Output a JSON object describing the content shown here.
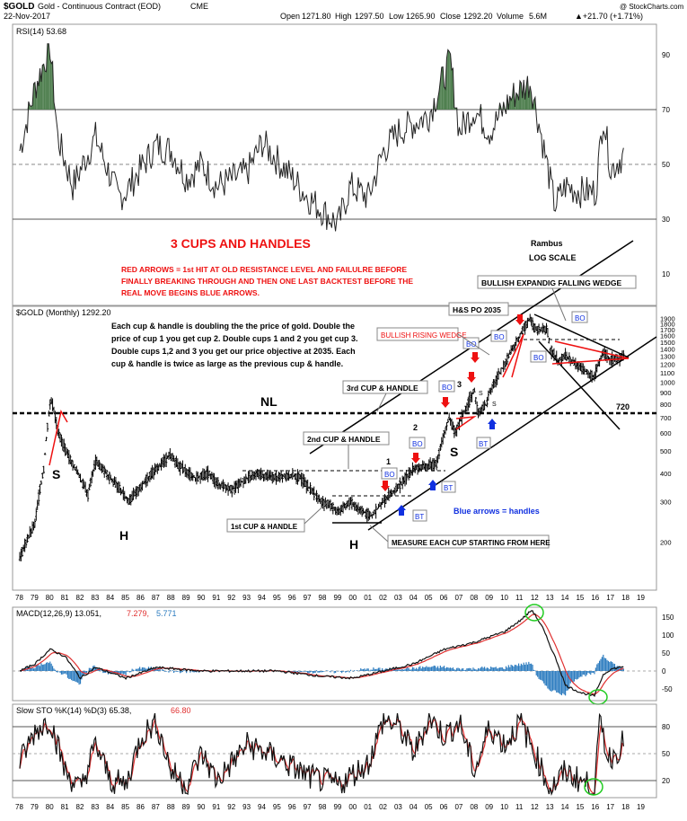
{
  "header": {
    "symbol": "$GOLD",
    "name": "Gold - Continuous Contract (EOD)",
    "exchange": "CME",
    "date": "22-Nov-2017",
    "open_label": "Open",
    "open": "1271.80",
    "high_label": "High",
    "high": "1297.50",
    "low_label": "Low",
    "low": "1265.90",
    "close_label": "Close",
    "close": "1292.20",
    "volume_label": "Volume",
    "volume": "5.6M",
    "change": "▲+21.70 (+1.71%)",
    "copyright": "@ StockCharts.com"
  },
  "colors": {
    "price_bars": "#000000",
    "rsi_fill": "#4f7f4f",
    "macd_signal": "#e03030",
    "histogram": "#2b7bbf",
    "annotation_red": "#ee1111",
    "arrow_blue": "#1030e0",
    "circle_green": "#22cc22"
  },
  "rsi_panel": {
    "label": "RSI(14) 53.68",
    "ticks": [
      "90",
      "70",
      "50",
      "30",
      "10"
    ],
    "title": "3 CUPS AND HANDLES",
    "red_note_lines": [
      "RED ARROWS = 1st HIT AT OLD RESISTANCE LEVEL AND FAILULRE BEFORE",
      "FINALLY BREAKING THROUGH AND THEN ONE LAST BACKTEST BEFORE THE",
      "REAL MOVE BEGINS BLUE ARROWS."
    ],
    "rambus_line1": "Rambus",
    "rambus_line2": "LOG SCALE"
  },
  "price_panel": {
    "label": "$GOLD (Monthly) 1292.20",
    "note_lines": [
      "Each cup & handle is doubling the the price of gold. Double the",
      "price of cup 1 you get cup 2. Double cups 1 and 2 you get cup 3.",
      "Double cups 1,2 and 3 you get our price objective at 2035. Each",
      "cup & handle is twice as large as the previous cup & handle."
    ],
    "y_ticks": [
      "1900",
      "1800",
      "1700",
      "1600",
      "1500",
      "1400",
      "1300",
      "1200",
      "1100",
      "1000",
      "900",
      "800",
      "700",
      "600",
      "500",
      "400",
      "300",
      "200"
    ],
    "callouts": {
      "bullish_expanding": "BULLISH EXPANDIG FALLING WEDGE",
      "hs_po": "H&S PO 2035",
      "bullish_rising": "BULLISH RISING WEDGE",
      "cup3": "3rd CUP & HANDLE",
      "cup2": "2nd CUP & HANDLE",
      "cup1": "1st CUP & HANDLE",
      "measure": "MEASURE EACH CUP STARTING FROM HERE",
      "blue_note": "Blue arrows = handles",
      "nl": "NL",
      "level_720": "720",
      "bo": "BO",
      "bt": "BT",
      "s": "S",
      "h": "H",
      "n1": "1",
      "n2": "2",
      "n3": "3"
    }
  },
  "x_axis_years": [
    "78",
    "79",
    "80",
    "81",
    "82",
    "83",
    "84",
    "85",
    "86",
    "87",
    "88",
    "89",
    "90",
    "91",
    "92",
    "93",
    "94",
    "95",
    "96",
    "97",
    "98",
    "99",
    "00",
    "01",
    "02",
    "03",
    "04",
    "05",
    "06",
    "07",
    "08",
    "09",
    "10",
    "11",
    "12",
    "13",
    "14",
    "15",
    "16",
    "17",
    "18",
    "19"
  ],
  "macd_panel": {
    "label": "MACD(12,26,9) 13.051,",
    "signal_value": "7.279,",
    "hist_value": "5.771",
    "ticks": [
      "150",
      "100",
      "50",
      "0",
      "-50"
    ]
  },
  "sto_panel": {
    "label": "Slow STO %K(14) %D(3) 65.38,",
    "d_value": "66.80",
    "ticks": [
      "80",
      "50",
      "20"
    ]
  },
  "chart_data": {
    "type": "line",
    "title": "3 CUPS AND HANDLES",
    "x_range": [
      1978,
      2019
    ],
    "price_scale": "log",
    "ylim": [
      130,
      2000
    ],
    "series": [
      {
        "name": "$GOLD (Monthly)",
        "x": [
          1978,
          1979,
          1979.6,
          1980.05,
          1980.5,
          1981,
          1982.5,
          1983,
          1984,
          1985.2,
          1986,
          1987.9,
          1988.5,
          1989.6,
          1990.5,
          1991,
          1992,
          1993,
          1993.7,
          1994,
          1995,
          1996,
          1996.5,
          1997,
          1997.9,
          1998.5,
          1999,
          1999.8,
          2000,
          2000.5,
          2001.2,
          2002,
          2003,
          2004,
          2004.8,
          2005.5,
          2006.35,
          2006.7,
          2007,
          2008,
          2008.2,
          2008.8,
          2009,
          2010,
          2011,
          2011.67,
          2012,
          2012.8,
          2013,
          2013.5,
          2014,
          2015,
          2015.9,
          2016.5,
          2017,
          2017.9
        ],
        "values": [
          170,
          240,
          420,
          850,
          620,
          500,
          320,
          450,
          380,
          300,
          350,
          480,
          430,
          380,
          400,
          360,
          340,
          380,
          400,
          390,
          385,
          390,
          380,
          350,
          300,
          290,
          270,
          300,
          290,
          275,
          260,
          300,
          350,
          420,
          430,
          440,
          700,
          600,
          660,
          920,
          730,
          800,
          900,
          1200,
          1600,
          1900,
          1700,
          1700,
          1400,
          1250,
          1300,
          1150,
          1060,
          1350,
          1250,
          1292
        ]
      }
    ],
    "rsi_x": [
      1978,
      1979,
      1980,
      1980.5,
      1981.5,
      1983,
      1984.5,
      1985,
      1987,
      1988,
      1989,
      1990,
      1991,
      1993,
      1994,
      1996,
      1997,
      1999,
      1999.8,
      2001,
      2002,
      2003,
      2005,
      2006.4,
      2007,
      2008,
      2009,
      2010.5,
      2011.7,
      2012.5,
      2013.3,
      2014,
      2015,
      2016,
      2016.5,
      2017,
      2017.9
    ],
    "rsi": [
      55,
      78,
      93,
      60,
      42,
      60,
      38,
      40,
      57,
      55,
      45,
      50,
      42,
      47,
      58,
      45,
      38,
      28,
      42,
      38,
      55,
      62,
      68,
      88,
      62,
      70,
      62,
      75,
      80,
      58,
      35,
      42,
      40,
      40,
      68,
      48,
      54
    ],
    "macd_x": [
      1978,
      1979,
      1980,
      1981,
      1982,
      1983,
      1985,
      1987,
      1990,
      1995,
      1998,
      2000,
      2002,
      2004,
      2006,
      2008,
      2010,
      2011,
      2011.8,
      2012.5,
      2013.5,
      2014,
      2015,
      2015.9,
      2016.5,
      2017,
      2017.9
    ],
    "macd": [
      0,
      20,
      60,
      40,
      -20,
      10,
      -20,
      10,
      0,
      0,
      -15,
      -20,
      0,
      20,
      60,
      80,
      110,
      140,
      170,
      120,
      20,
      -40,
      -60,
      -70,
      -10,
      5,
      13.051
    ],
    "stoch_x": [
      1978,
      1979,
      1980,
      1981,
      1982,
      1983,
      1984,
      1985,
      1986,
      1987,
      1988,
      1989,
      1990,
      1991,
      1993,
      1995,
      1997,
      1999,
      2001,
      2002,
      2003,
      2004,
      2005,
      2006,
      2007,
      2008,
      2009,
      2010,
      2011,
      2012,
      2013,
      2014,
      2015,
      2015.9,
      2016.3,
      2016.8,
      2017.3,
      2017.9
    ],
    "stoch": [
      40,
      75,
      88,
      30,
      10,
      60,
      20,
      15,
      70,
      85,
      30,
      15,
      50,
      20,
      60,
      45,
      25,
      15,
      40,
      88,
      80,
      50,
      90,
      70,
      85,
      30,
      80,
      60,
      85,
      50,
      10,
      30,
      20,
      12,
      88,
      45,
      50,
      65.38
    ]
  }
}
